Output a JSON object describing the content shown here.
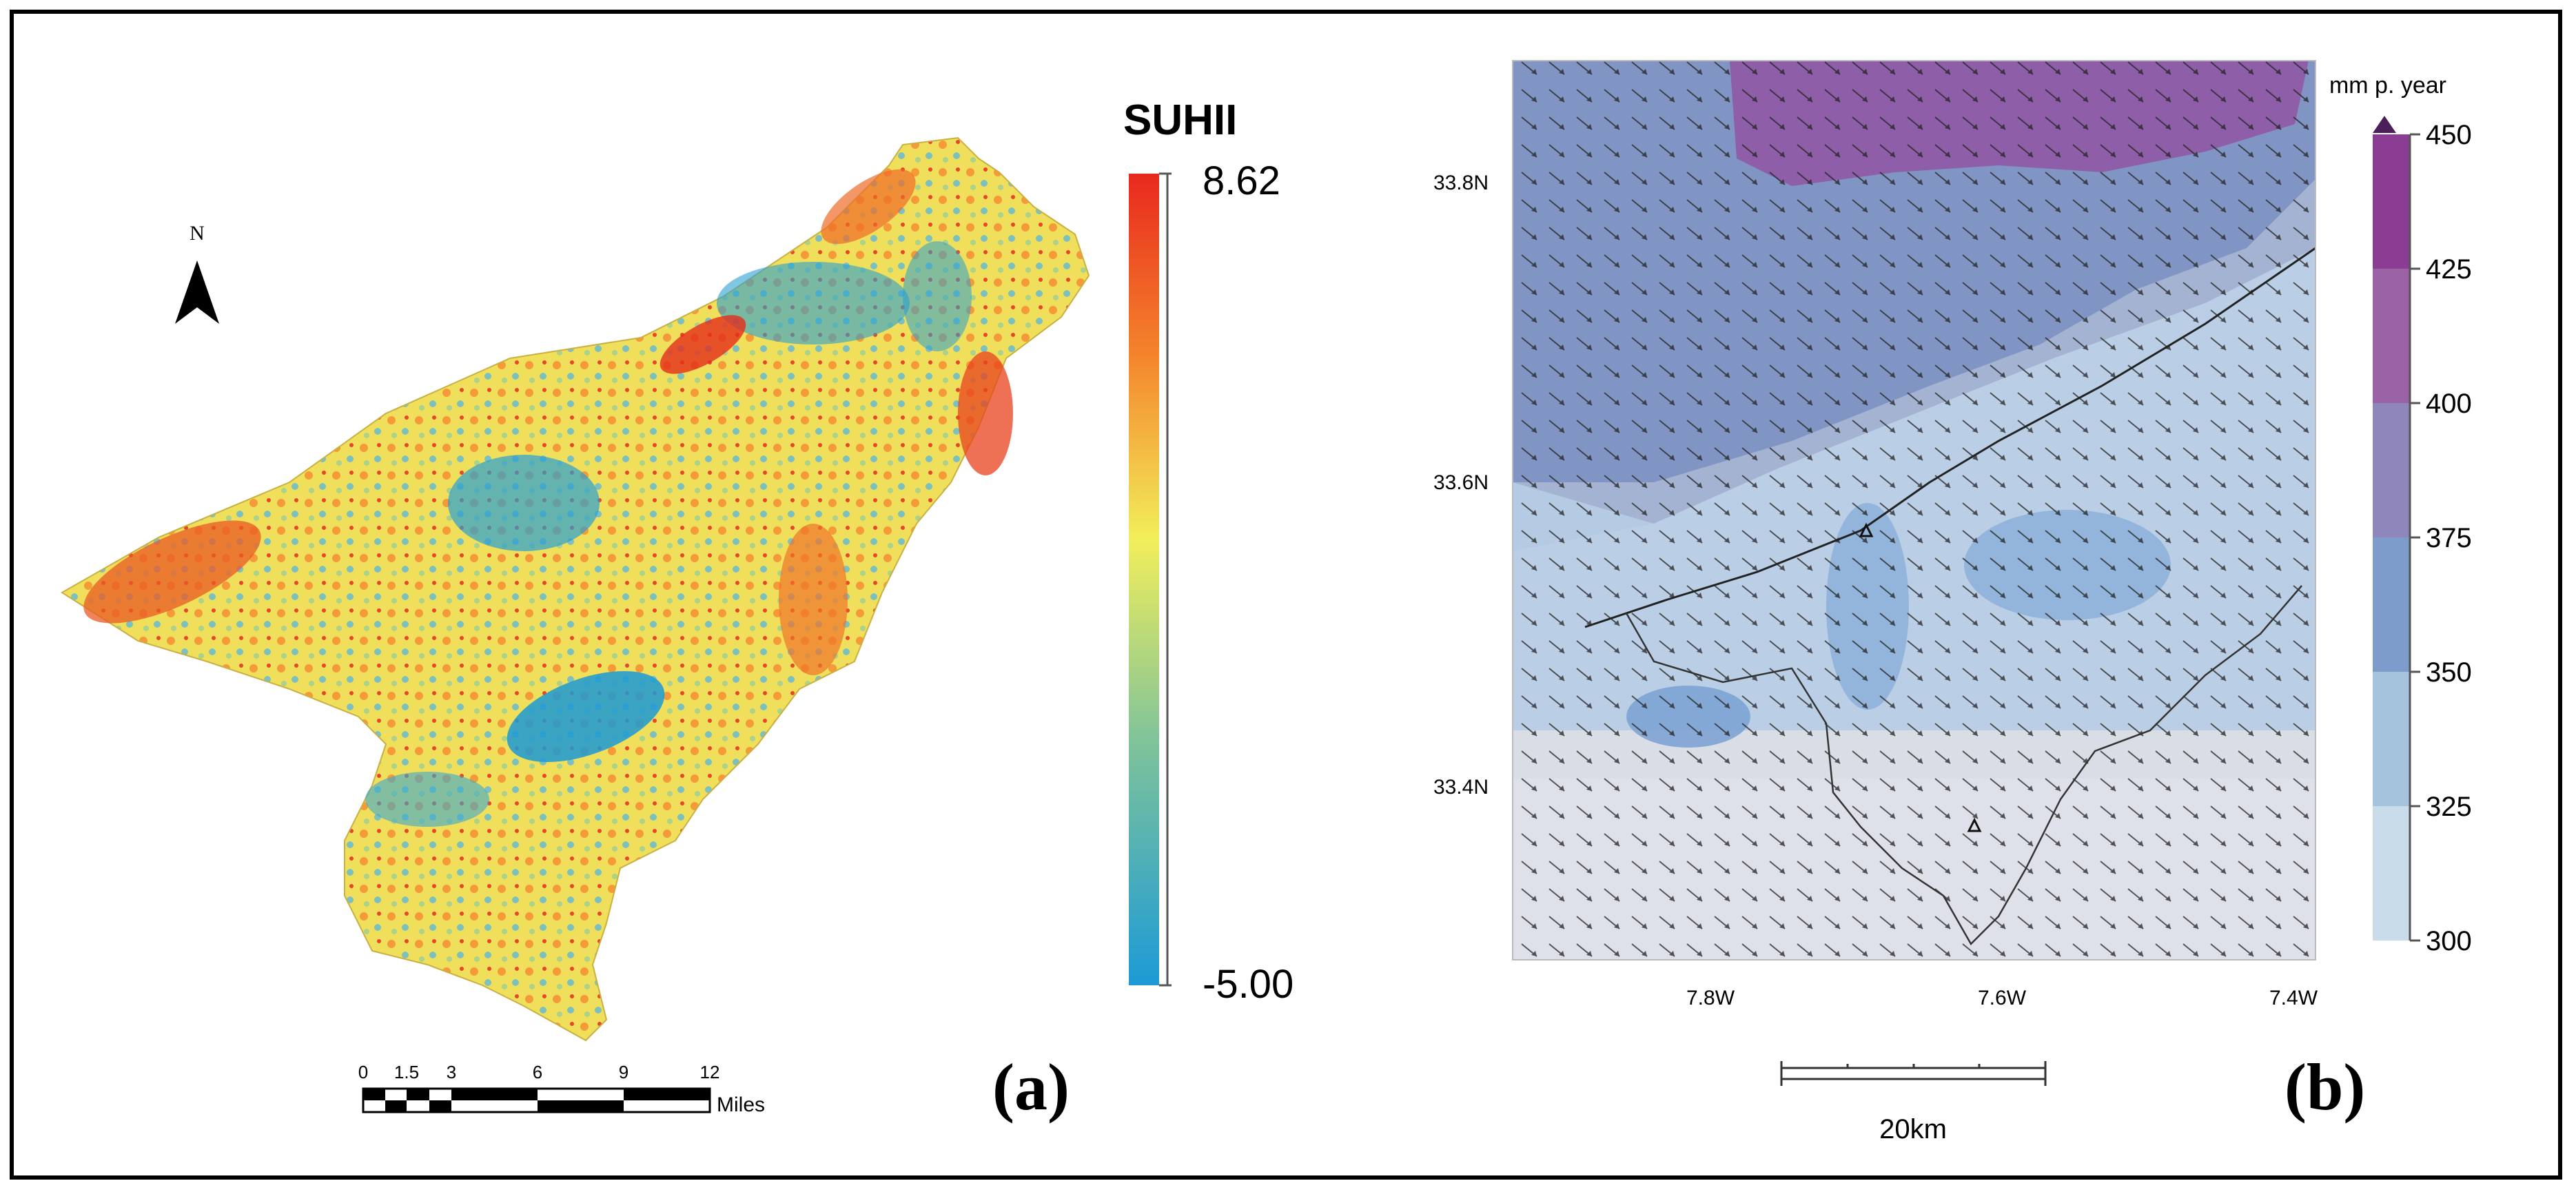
{
  "panel_a": {
    "north_label": "N",
    "legend_title": "SUHII",
    "legend_max": "8.62",
    "legend_min": "-5.00",
    "scale_ticks": [
      "0",
      "1.5",
      "3",
      "6",
      "9",
      "12"
    ],
    "scale_unit": "Miles",
    "panel_label": "(a)",
    "colors": {
      "low": "#1c9ad6",
      "mid": "#f2ee5a",
      "high": "#e8281e"
    }
  },
  "panel_b": {
    "legend_unit": "mm p. year",
    "legend_ticks": [
      "450",
      "425",
      "400",
      "375",
      "350",
      "325",
      "300"
    ],
    "legend_colors": [
      "#8b3d94",
      "#9b63a6",
      "#8f86bb",
      "#7d9bcb",
      "#a6c3de",
      "#c8dcea"
    ],
    "lat_labels": [
      "33.8N",
      "33.6N",
      "33.4N"
    ],
    "lon_labels": [
      "7.8W",
      "7.6W",
      "7.4W"
    ],
    "scale_label": "20km",
    "panel_label": "(b)"
  }
}
